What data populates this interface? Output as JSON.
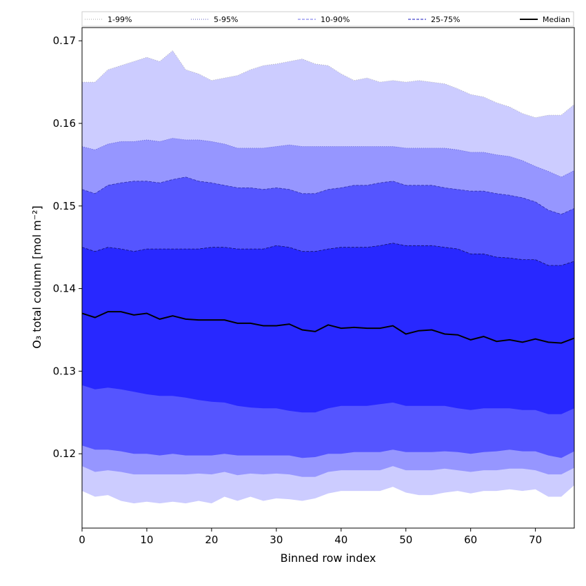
{
  "chart_data": {
    "type": "area",
    "xlabel": "Binned row index",
    "ylabel": "O₃ total column [mol m⁻²]",
    "xlim": [
      0,
      76
    ],
    "ylim": [
      0.111,
      0.1716
    ],
    "xticks": [
      0,
      10,
      20,
      30,
      40,
      50,
      60,
      70
    ],
    "yticks": [
      0.12,
      0.13,
      0.14,
      0.15,
      0.16,
      0.17
    ],
    "ytick_labels": [
      "0.12",
      "0.13",
      "0.14",
      "0.15",
      "0.16",
      "0.17"
    ],
    "legend_position": "top, horizontal above plot",
    "x": [
      0,
      2,
      4,
      6,
      8,
      10,
      12,
      14,
      16,
      18,
      20,
      22,
      24,
      26,
      28,
      30,
      32,
      34,
      36,
      38,
      40,
      42,
      44,
      46,
      48,
      50,
      52,
      54,
      56,
      58,
      60,
      62,
      64,
      66,
      68,
      70,
      72,
      74,
      76
    ],
    "bands": [
      {
        "name": "1-99%",
        "color": "#ccccff",
        "line_color": "#aaaaaa",
        "lower": [
          0.1155,
          0.1148,
          0.115,
          0.1143,
          0.114,
          0.1142,
          0.114,
          0.1142,
          0.114,
          0.1143,
          0.114,
          0.1148,
          0.1143,
          0.1148,
          0.1143,
          0.1146,
          0.1145,
          0.1143,
          0.1146,
          0.1152,
          0.1155,
          0.1155,
          0.1155,
          0.1155,
          0.116,
          0.1153,
          0.115,
          0.115,
          0.1153,
          0.1155,
          0.1152,
          0.1155,
          0.1155,
          0.1157,
          0.1155,
          0.1157,
          0.1148,
          0.1148,
          0.1162
        ],
        "upper": [
          0.165,
          0.165,
          0.1665,
          0.167,
          0.1675,
          0.168,
          0.1675,
          0.1688,
          0.1665,
          0.166,
          0.1652,
          0.1655,
          0.1658,
          0.1665,
          0.167,
          0.1672,
          0.1675,
          0.1678,
          0.1672,
          0.167,
          0.166,
          0.1652,
          0.1655,
          0.165,
          0.1652,
          0.165,
          0.1652,
          0.165,
          0.1648,
          0.1642,
          0.1635,
          0.1632,
          0.1625,
          0.162,
          0.1612,
          0.1607,
          0.161,
          0.161,
          0.1623
        ]
      },
      {
        "name": "5-95%",
        "color": "#9696ff",
        "line_color": "#5555cc",
        "lower": [
          0.1185,
          0.1178,
          0.118,
          0.1178,
          0.1175,
          0.1175,
          0.1175,
          0.1175,
          0.1175,
          0.1176,
          0.1175,
          0.1178,
          0.1174,
          0.1176,
          0.1175,
          0.1176,
          0.1175,
          0.1172,
          0.1172,
          0.1178,
          0.118,
          0.118,
          0.118,
          0.118,
          0.1185,
          0.118,
          0.118,
          0.118,
          0.1182,
          0.118,
          0.1178,
          0.118,
          0.118,
          0.1182,
          0.1182,
          0.118,
          0.1175,
          0.1175,
          0.1183
        ],
        "upper": [
          0.1572,
          0.1568,
          0.1575,
          0.1578,
          0.1578,
          0.158,
          0.1578,
          0.1582,
          0.158,
          0.158,
          0.1578,
          0.1575,
          0.157,
          0.157,
          0.157,
          0.1572,
          0.1574,
          0.1572,
          0.1572,
          0.1572,
          0.1572,
          0.1572,
          0.1572,
          0.1572,
          0.1572,
          0.157,
          0.157,
          0.157,
          0.157,
          0.1568,
          0.1565,
          0.1565,
          0.1562,
          0.156,
          0.1555,
          0.1548,
          0.1542,
          0.1535,
          0.1543
        ]
      },
      {
        "name": "10-90%",
        "color": "#5555ff",
        "line_color": "#3333aa",
        "lower": [
          0.121,
          0.1205,
          0.1205,
          0.1203,
          0.12,
          0.12,
          0.1198,
          0.12,
          0.1198,
          0.1198,
          0.1198,
          0.12,
          0.1198,
          0.1198,
          0.1198,
          0.1198,
          0.1198,
          0.1195,
          0.1196,
          0.12,
          0.12,
          0.1202,
          0.1202,
          0.1202,
          0.1205,
          0.1202,
          0.1202,
          0.1202,
          0.1203,
          0.1202,
          0.12,
          0.1202,
          0.1203,
          0.1205,
          0.1203,
          0.1203,
          0.1198,
          0.1195,
          0.1203
        ],
        "upper": [
          0.152,
          0.1515,
          0.1525,
          0.1528,
          0.153,
          0.153,
          0.1528,
          0.1532,
          0.1535,
          0.153,
          0.1528,
          0.1525,
          0.1522,
          0.1522,
          0.152,
          0.1522,
          0.152,
          0.1515,
          0.1515,
          0.152,
          0.1522,
          0.1525,
          0.1525,
          0.1528,
          0.153,
          0.1525,
          0.1525,
          0.1525,
          0.1522,
          0.152,
          0.1518,
          0.1518,
          0.1515,
          0.1513,
          0.151,
          0.1505,
          0.1495,
          0.149,
          0.1497
        ]
      },
      {
        "name": "25-75%",
        "color": "#2828ff",
        "line_color": "#111166",
        "lower": [
          0.1283,
          0.1278,
          0.128,
          0.1278,
          0.1275,
          0.1272,
          0.127,
          0.127,
          0.1268,
          0.1265,
          0.1263,
          0.1262,
          0.1258,
          0.1256,
          0.1255,
          0.1255,
          0.1252,
          0.125,
          0.125,
          0.1255,
          0.1258,
          0.1258,
          0.1258,
          0.126,
          0.1262,
          0.1258,
          0.1258,
          0.1258,
          0.1258,
          0.1255,
          0.1253,
          0.1255,
          0.1255,
          0.1255,
          0.1253,
          0.1253,
          0.1248,
          0.1248,
          0.1255
        ],
        "upper": [
          0.145,
          0.1445,
          0.145,
          0.1448,
          0.1445,
          0.1448,
          0.1448,
          0.1448,
          0.1448,
          0.1448,
          0.145,
          0.145,
          0.1448,
          0.1448,
          0.1448,
          0.1452,
          0.145,
          0.1445,
          0.1445,
          0.1448,
          0.145,
          0.145,
          0.145,
          0.1452,
          0.1455,
          0.1452,
          0.1452,
          0.1452,
          0.145,
          0.1448,
          0.1442,
          0.1442,
          0.1438,
          0.1437,
          0.1435,
          0.1435,
          0.1428,
          0.1428,
          0.1433
        ]
      }
    ],
    "median": {
      "name": "Median",
      "color": "#000000",
      "values": [
        0.137,
        0.1365,
        0.1372,
        0.1372,
        0.1368,
        0.137,
        0.1363,
        0.1367,
        0.1363,
        0.1362,
        0.1362,
        0.1362,
        0.1358,
        0.1358,
        0.1355,
        0.1355,
        0.1357,
        0.135,
        0.1348,
        0.1356,
        0.1352,
        0.1353,
        0.1352,
        0.1352,
        0.1355,
        0.1345,
        0.1349,
        0.135,
        0.1345,
        0.1344,
        0.1338,
        0.1342,
        0.1336,
        0.1338,
        0.1335,
        0.1339,
        0.1335,
        0.1334,
        0.134
      ]
    },
    "legend": [
      {
        "label": "1-99%",
        "style": "dotted",
        "color": "#bbbbbb"
      },
      {
        "label": "5-95%",
        "style": "dotted",
        "color": "#7777cc"
      },
      {
        "label": "10-90%",
        "style": "dashed",
        "color": "#8888ee"
      },
      {
        "label": "25-75%",
        "style": "dashed",
        "color": "#4444cc"
      },
      {
        "label": "Median",
        "style": "solid",
        "color": "#000000"
      }
    ]
  }
}
